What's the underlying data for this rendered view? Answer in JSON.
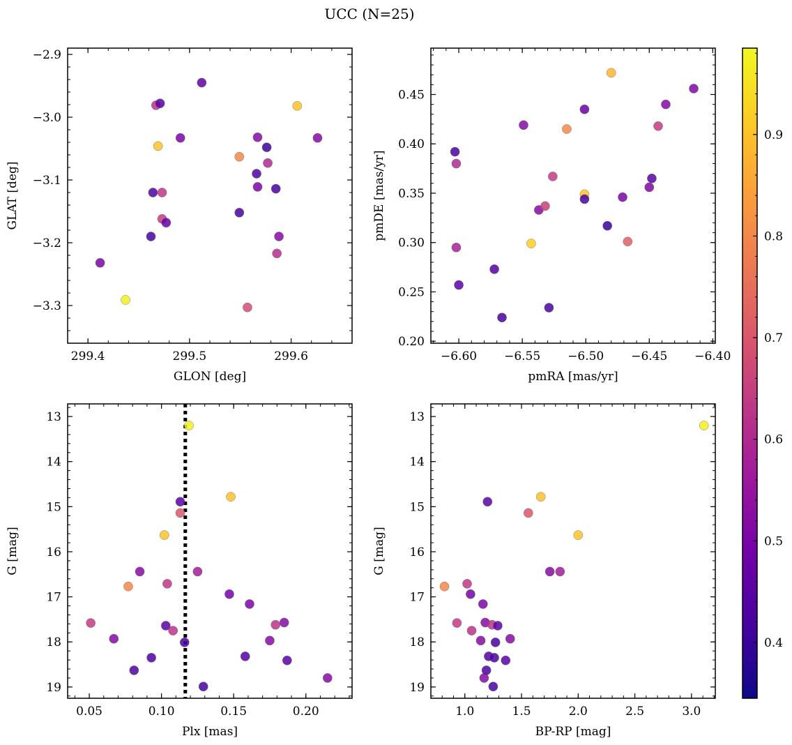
{
  "figure": {
    "title": "UCC (N=25)"
  },
  "colorbar": {
    "vmin": 0.345,
    "vmax": 0.985,
    "ticks": [
      0.4,
      0.5,
      0.6,
      0.7,
      0.8,
      0.9
    ],
    "ticklabels": [
      "0.4",
      "0.5",
      "0.6",
      "0.7",
      "0.8",
      "0.9"
    ]
  },
  "colormap_stops": [
    "#0d0887",
    "#46039f",
    "#7201a8",
    "#9c179e",
    "#bd3786",
    "#d8576b",
    "#ed7953",
    "#fb9f3a",
    "#fdca26",
    "#f0f921"
  ],
  "chart_data": [
    {
      "id": "pos",
      "type": "scatter",
      "xlabel": "GLON [deg]",
      "ylabel": "GLAT [deg]",
      "xlim": [
        299.38,
        299.66
      ],
      "ylim": [
        -3.36,
        -2.89
      ],
      "xticks": [
        299.4,
        299.5,
        299.6
      ],
      "xticklabels": [
        "299.4",
        "299.5",
        "299.6"
      ],
      "yticks": [
        -3.3,
        -3.2,
        -3.1,
        -3.0,
        -2.9
      ],
      "yticklabels": [
        "−3.3",
        "−3.2",
        "−3.1",
        "−3.0",
        "−2.9"
      ],
      "points": [
        {
          "x": 299.412,
          "y": -3.232,
          "c": 0.5
        },
        {
          "x": 299.437,
          "y": -3.291,
          "c": 0.97
        },
        {
          "x": 299.462,
          "y": -3.19,
          "c": 0.42
        },
        {
          "x": 299.464,
          "y": -3.12,
          "c": 0.43
        },
        {
          "x": 299.467,
          "y": -2.981,
          "c": 0.62
        },
        {
          "x": 299.469,
          "y": -3.046,
          "c": 0.9
        },
        {
          "x": 299.471,
          "y": -2.978,
          "c": 0.45
        },
        {
          "x": 299.473,
          "y": -3.12,
          "c": 0.63
        },
        {
          "x": 299.473,
          "y": -3.162,
          "c": 0.64
        },
        {
          "x": 299.477,
          "y": -3.168,
          "c": 0.47
        },
        {
          "x": 299.491,
          "y": -3.033,
          "c": 0.5
        },
        {
          "x": 299.512,
          "y": -2.945,
          "c": 0.46
        },
        {
          "x": 299.549,
          "y": -3.152,
          "c": 0.42
        },
        {
          "x": 299.549,
          "y": -3.063,
          "c": 0.8
        },
        {
          "x": 299.557,
          "y": -3.303,
          "c": 0.68
        },
        {
          "x": 299.566,
          "y": -3.09,
          "c": 0.43
        },
        {
          "x": 299.567,
          "y": -3.032,
          "c": 0.52
        },
        {
          "x": 299.567,
          "y": -3.111,
          "c": 0.5
        },
        {
          "x": 299.576,
          "y": -3.048,
          "c": 0.4
        },
        {
          "x": 299.577,
          "y": -3.073,
          "c": 0.6
        },
        {
          "x": 299.585,
          "y": -3.114,
          "c": 0.42
        },
        {
          "x": 299.586,
          "y": -3.217,
          "c": 0.61
        },
        {
          "x": 299.588,
          "y": -3.19,
          "c": 0.52
        },
        {
          "x": 299.606,
          "y": -2.982,
          "c": 0.9
        },
        {
          "x": 299.626,
          "y": -3.033,
          "c": 0.52
        }
      ]
    },
    {
      "id": "pm",
      "type": "scatter",
      "xlabel": "pmRA [mas/yr]",
      "ylabel": "pmDE [mas/yr]",
      "xlim": [
        -6.622,
        -6.398
      ],
      "ylim": [
        0.198,
        0.497
      ],
      "xticks": [
        -6.6,
        -6.55,
        -6.5,
        -6.45,
        -6.4
      ],
      "xticklabels": [
        "−6.60",
        "−6.55",
        "−6.50",
        "−6.45",
        "−6.40"
      ],
      "yticks": [
        0.2,
        0.25,
        0.3,
        0.35,
        0.4,
        0.45
      ],
      "yticklabels": [
        "0.20",
        "0.25",
        "0.30",
        "0.35",
        "0.40",
        "0.45"
      ],
      "points": [
        {
          "x": -6.603,
          "y": 0.392,
          "c": 0.42
        },
        {
          "x": -6.602,
          "y": 0.38,
          "c": 0.6
        },
        {
          "x": -6.602,
          "y": 0.295,
          "c": 0.58
        },
        {
          "x": -6.6,
          "y": 0.257,
          "c": 0.45
        },
        {
          "x": -6.572,
          "y": 0.273,
          "c": 0.44
        },
        {
          "x": -6.566,
          "y": 0.224,
          "c": 0.42
        },
        {
          "x": -6.549,
          "y": 0.419,
          "c": 0.52
        },
        {
          "x": -6.543,
          "y": 0.299,
          "c": 0.92
        },
        {
          "x": -6.537,
          "y": 0.333,
          "c": 0.52
        },
        {
          "x": -6.532,
          "y": 0.337,
          "c": 0.65
        },
        {
          "x": -6.529,
          "y": 0.234,
          "c": 0.42
        },
        {
          "x": -6.526,
          "y": 0.367,
          "c": 0.64
        },
        {
          "x": -6.515,
          "y": 0.415,
          "c": 0.8
        },
        {
          "x": -6.501,
          "y": 0.435,
          "c": 0.47
        },
        {
          "x": -6.501,
          "y": 0.349,
          "c": 0.9
        },
        {
          "x": -6.501,
          "y": 0.344,
          "c": 0.42
        },
        {
          "x": -6.483,
          "y": 0.317,
          "c": 0.4
        },
        {
          "x": -6.48,
          "y": 0.472,
          "c": 0.88
        },
        {
          "x": -6.471,
          "y": 0.346,
          "c": 0.5
        },
        {
          "x": -6.467,
          "y": 0.301,
          "c": 0.72
        },
        {
          "x": -6.45,
          "y": 0.356,
          "c": 0.51
        },
        {
          "x": -6.448,
          "y": 0.365,
          "c": 0.45
        },
        {
          "x": -6.443,
          "y": 0.418,
          "c": 0.64
        },
        {
          "x": -6.437,
          "y": 0.44,
          "c": 0.52
        },
        {
          "x": -6.415,
          "y": 0.456,
          "c": 0.51
        }
      ]
    },
    {
      "id": "plx",
      "type": "scatter",
      "xlabel": "Plx [mas]",
      "ylabel": "G [mag]",
      "xlim": [
        0.035,
        0.232
      ],
      "ylim": [
        19.25,
        12.72
      ],
      "xticks": [
        0.05,
        0.1,
        0.15,
        0.2
      ],
      "xticklabels": [
        "0.05",
        "0.10",
        "0.15",
        "0.20"
      ],
      "yticks": [
        13,
        14,
        15,
        16,
        17,
        18,
        19
      ],
      "yticklabels": [
        "13",
        "14",
        "15",
        "16",
        "17",
        "18",
        "19"
      ],
      "vline": {
        "x": 0.1165
      },
      "points": [
        {
          "x": 0.051,
          "y": 17.58,
          "c": 0.64
        },
        {
          "x": 0.067,
          "y": 17.93,
          "c": 0.52
        },
        {
          "x": 0.077,
          "y": 16.77,
          "c": 0.8
        },
        {
          "x": 0.081,
          "y": 18.63,
          "c": 0.43
        },
        {
          "x": 0.085,
          "y": 16.44,
          "c": 0.52
        },
        {
          "x": 0.093,
          "y": 18.35,
          "c": 0.43
        },
        {
          "x": 0.102,
          "y": 15.63,
          "c": 0.9
        },
        {
          "x": 0.103,
          "y": 17.64,
          "c": 0.45
        },
        {
          "x": 0.104,
          "y": 16.71,
          "c": 0.63
        },
        {
          "x": 0.108,
          "y": 17.75,
          "c": 0.62
        },
        {
          "x": 0.113,
          "y": 14.89,
          "c": 0.45
        },
        {
          "x": 0.113,
          "y": 15.14,
          "c": 0.7
        },
        {
          "x": 0.116,
          "y": 18.01,
          "c": 0.42
        },
        {
          "x": 0.119,
          "y": 13.2,
          "c": 0.97
        },
        {
          "x": 0.125,
          "y": 16.44,
          "c": 0.57
        },
        {
          "x": 0.129,
          "y": 18.99,
          "c": 0.42
        },
        {
          "x": 0.147,
          "y": 16.94,
          "c": 0.49
        },
        {
          "x": 0.148,
          "y": 14.78,
          "c": 0.9
        },
        {
          "x": 0.158,
          "y": 18.32,
          "c": 0.44
        },
        {
          "x": 0.161,
          "y": 17.16,
          "c": 0.5
        },
        {
          "x": 0.175,
          "y": 17.97,
          "c": 0.52
        },
        {
          "x": 0.179,
          "y": 17.62,
          "c": 0.62
        },
        {
          "x": 0.185,
          "y": 17.57,
          "c": 0.52
        },
        {
          "x": 0.187,
          "y": 18.41,
          "c": 0.45
        },
        {
          "x": 0.215,
          "y": 18.8,
          "c": 0.52
        }
      ]
    },
    {
      "id": "cmd",
      "type": "scatter",
      "xlabel": "BP-RP [mag]",
      "ylabel": "G [mag]",
      "xlim": [
        0.7,
        3.21
      ],
      "ylim": [
        19.25,
        12.72
      ],
      "xticks": [
        1.0,
        1.5,
        2.0,
        2.5,
        3.0
      ],
      "xticklabels": [
        "1.0",
        "1.5",
        "2.0",
        "2.5",
        "3.0"
      ],
      "yticks": [
        13,
        14,
        15,
        16,
        17,
        18,
        19
      ],
      "yticklabels": [
        "13",
        "14",
        "15",
        "16",
        "17",
        "18",
        "19"
      ],
      "points": [
        {
          "x": 0.82,
          "y": 16.77,
          "c": 0.8
        },
        {
          "x": 0.93,
          "y": 17.58,
          "c": 0.64
        },
        {
          "x": 1.02,
          "y": 16.71,
          "c": 0.63
        },
        {
          "x": 1.05,
          "y": 16.94,
          "c": 0.49
        },
        {
          "x": 1.06,
          "y": 17.75,
          "c": 0.62
        },
        {
          "x": 1.14,
          "y": 17.97,
          "c": 0.52
        },
        {
          "x": 1.16,
          "y": 17.16,
          "c": 0.5
        },
        {
          "x": 1.17,
          "y": 18.8,
          "c": 0.52
        },
        {
          "x": 1.18,
          "y": 17.57,
          "c": 0.52
        },
        {
          "x": 1.19,
          "y": 18.63,
          "c": 0.43
        },
        {
          "x": 1.2,
          "y": 14.89,
          "c": 0.45
        },
        {
          "x": 1.21,
          "y": 18.32,
          "c": 0.44
        },
        {
          "x": 1.24,
          "y": 17.62,
          "c": 0.62
        },
        {
          "x": 1.25,
          "y": 18.99,
          "c": 0.42
        },
        {
          "x": 1.26,
          "y": 18.35,
          "c": 0.43
        },
        {
          "x": 1.27,
          "y": 18.01,
          "c": 0.42
        },
        {
          "x": 1.29,
          "y": 17.64,
          "c": 0.45
        },
        {
          "x": 1.36,
          "y": 18.41,
          "c": 0.45
        },
        {
          "x": 1.4,
          "y": 17.93,
          "c": 0.52
        },
        {
          "x": 1.56,
          "y": 15.14,
          "c": 0.7
        },
        {
          "x": 1.67,
          "y": 14.78,
          "c": 0.9
        },
        {
          "x": 1.75,
          "y": 16.44,
          "c": 0.52
        },
        {
          "x": 1.84,
          "y": 16.44,
          "c": 0.57
        },
        {
          "x": 2.0,
          "y": 15.63,
          "c": 0.9
        },
        {
          "x": 3.11,
          "y": 13.2,
          "c": 0.97
        }
      ]
    }
  ]
}
